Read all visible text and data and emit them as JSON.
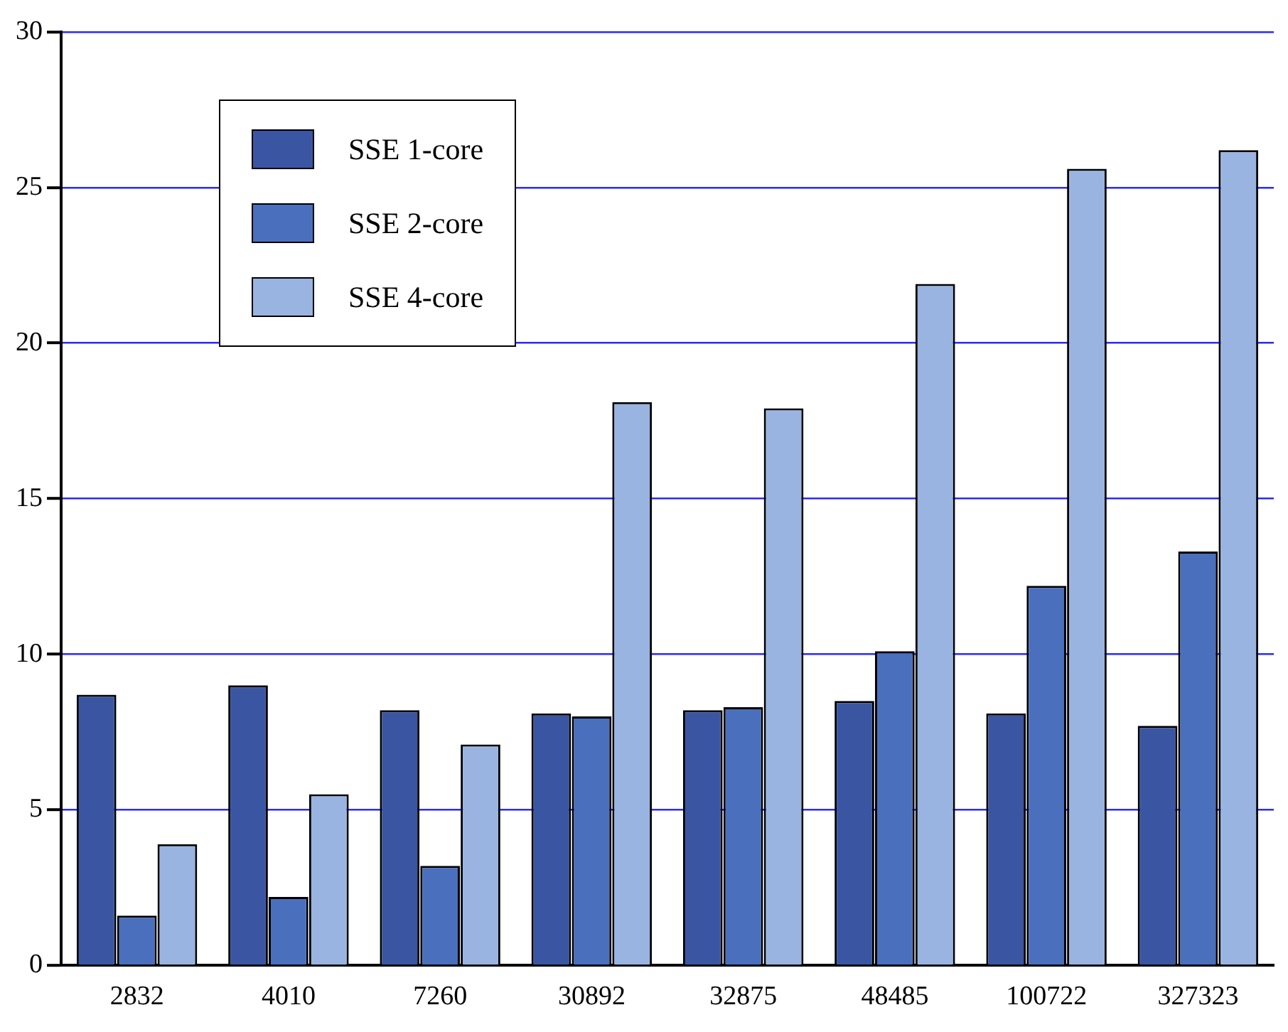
{
  "chart_data": {
    "type": "bar",
    "categories": [
      "2832",
      "4010",
      "7260",
      "30892",
      "32875",
      "48485",
      "100722",
      "327323"
    ],
    "series": [
      {
        "name": "SSE 1-core",
        "color": "#3a56a3",
        "values": [
          8.7,
          9.0,
          8.2,
          8.1,
          8.2,
          8.5,
          8.1,
          7.7
        ]
      },
      {
        "name": "SSE 2-core",
        "color": "#4a6fbd",
        "values": [
          1.6,
          2.2,
          3.2,
          8.0,
          8.3,
          10.1,
          12.2,
          13.3
        ]
      },
      {
        "name": "SSE 4-core",
        "color": "#9ab4e2",
        "values": [
          3.9,
          5.5,
          7.1,
          18.1,
          17.9,
          21.9,
          25.6,
          26.2
        ]
      }
    ],
    "ylim": [
      0,
      30
    ],
    "yticks": [
      0,
      5,
      10,
      15,
      20,
      25,
      30
    ],
    "grid": "y",
    "legend": "top left"
  }
}
